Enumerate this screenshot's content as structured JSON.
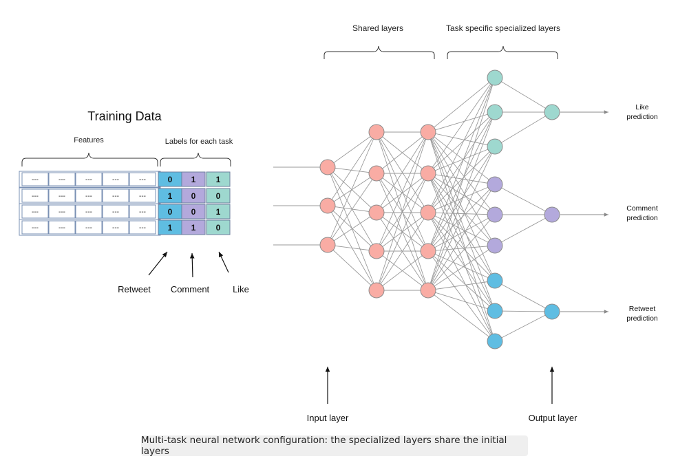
{
  "training_data": {
    "title": "Training Data",
    "features_label": "Features",
    "labels_label": "Labels for each task",
    "feature_placeholder": "---",
    "label_rows": [
      [
        0,
        1,
        1
      ],
      [
        1,
        0,
        0
      ],
      [
        0,
        0,
        1
      ],
      [
        1,
        1,
        0
      ]
    ],
    "column_pointers": [
      "Retweet",
      "Comment",
      "Like"
    ]
  },
  "network": {
    "shared_layers_label": "Shared layers",
    "task_layers_label": "Task specific specialized layers",
    "input_layer_label": "Input layer",
    "output_layer_label": "Output layer",
    "outputs": [
      {
        "line1": "Like",
        "line2": "prediction"
      },
      {
        "line1": "Comment",
        "line2": "prediction"
      },
      {
        "line1": "Retweet",
        "line2": "prediction"
      }
    ]
  },
  "colors": {
    "shared_node": "#f9aca4",
    "like_node": "#9ed8cf",
    "comment_node": "#b3a9dc",
    "retweet_node": "#5fbde2",
    "retweet_cell": "#5fbde2",
    "comment_cell": "#b3a9dc",
    "like_cell": "#9ed8cf",
    "edge": "#9a9a9a"
  },
  "caption": "Multi-task neural network configuration: the specialized layers share the initial layers"
}
